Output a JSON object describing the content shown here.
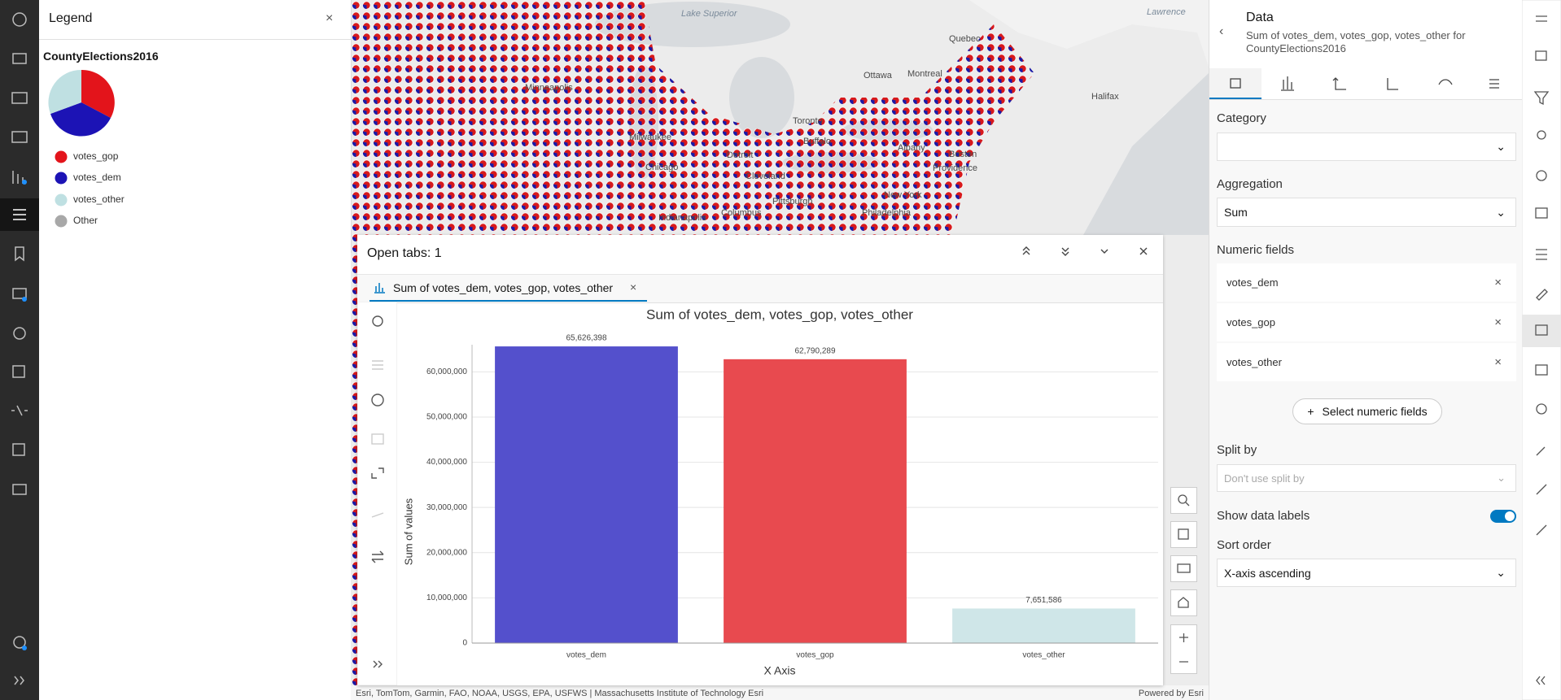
{
  "legend": {
    "title": "Legend",
    "layer": "CountyElections2016",
    "items": [
      "votes_gop",
      "votes_dem",
      "votes_other",
      "Other"
    ]
  },
  "map": {
    "labels": [
      "Lake Superior",
      "Lawrence",
      "Quebec",
      "Ottawa",
      "Montreal",
      "Halifax",
      "Minneapolis",
      "Toronto",
      "Milwaukee",
      "Buffalo",
      "Albany",
      "Boston",
      "Detroit",
      "Providence",
      "Chicago",
      "Cleveland",
      "New York",
      "Pittsburgh",
      "Philadelphia",
      "Columbus",
      "Indianapolis"
    ],
    "attribution": "Esri, TomTom, Garmin, FAO, NOAA, USGS, EPA, USFWS | Massachusetts Institute of Technology Esri",
    "powered_by": "Powered by Esri"
  },
  "chart_window": {
    "title": "Open tabs: 1",
    "tab": "Sum of votes_dem, votes_gop, votes_other"
  },
  "chart_data": {
    "type": "bar",
    "title": "Sum of votes_dem, votes_gop, votes_other",
    "x_label": "X Axis",
    "y_label": "Sum of values",
    "categories": [
      "votes_dem",
      "votes_gop",
      "votes_other"
    ],
    "values": [
      65626398,
      62790289,
      7651586
    ],
    "value_labels": [
      "65,626,398",
      "62,790,289",
      "7,651,586"
    ],
    "colors": [
      "#5450cc",
      "#e84a4f",
      "#cfe6e8"
    ],
    "ylim": [
      0,
      66000000
    ],
    "yticks": [
      0,
      {
        "value": 10000000,
        "label": "10,000,000"
      },
      {
        "value": 20000000,
        "label": "20,000,000"
      },
      {
        "value": 30000000,
        "label": "30,000,000"
      },
      {
        "value": 40000000,
        "label": "40,000,000"
      },
      {
        "value": 50000000,
        "label": "50,000,000"
      },
      {
        "value": 60000000,
        "label": "60,000,000"
      }
    ],
    "grid": true
  },
  "data_panel": {
    "title": "Data",
    "subtitle": "Sum of votes_dem, votes_gop, votes_other for CountyElections2016",
    "category_label": "Category",
    "aggregation_label": "Aggregation",
    "aggregation": "Sum",
    "numeric_label": "Numeric fields",
    "numeric_fields": [
      "votes_dem",
      "votes_gop",
      "votes_other"
    ],
    "select_button": "Select numeric fields",
    "split_label": "Split by",
    "split_placeholder": "Don't use split by",
    "show_labels": "Show data labels",
    "sort_label": "Sort order",
    "sort": "X-axis ascending"
  }
}
